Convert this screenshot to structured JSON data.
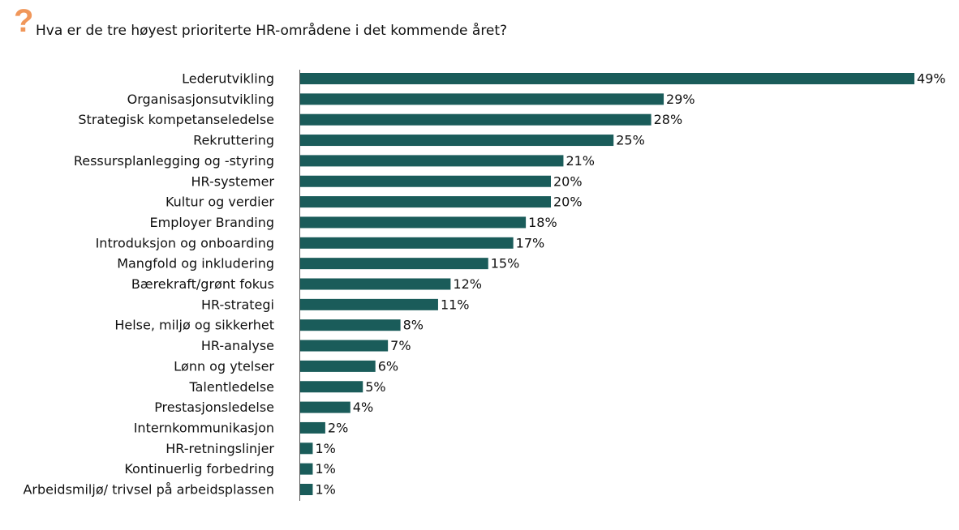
{
  "header": {
    "icon": "question-mark-icon",
    "icon_text": "?",
    "icon_color": "#f0975a",
    "title": "Hva er de tre høyest prioriterte HR-områdene i det kommende året?"
  },
  "chart_data": {
    "type": "bar",
    "orientation": "horizontal",
    "title": "Hva er de tre høyest prioriterte HR-områdene i det kommende året?",
    "categories": [
      "Lederutvikling",
      "Organisasjonsutvikling",
      "Strategisk kompetanseledelse",
      "Rekruttering",
      "Ressursplanlegging og -styring",
      "HR-systemer",
      "Kultur og verdier",
      "Employer Branding",
      "Introduksjon og onboarding",
      "Mangfold og inkludering",
      "Bærekraft/grønt fokus",
      "HR-strategi",
      "Helse, miljø og sikkerhet",
      "HR-analyse",
      "Lønn og ytelser",
      "Talentledelse",
      "Prestasjonsledelse",
      "Internkommunikasjon",
      "HR-retningslinjer",
      "Kontinuerlig forbedring",
      "Arbeidsmiljø/ trivsel på arbeidsplassen"
    ],
    "values": [
      49,
      29,
      28,
      25,
      21,
      20,
      20,
      18,
      17,
      15,
      12,
      11,
      8,
      7,
      6,
      5,
      4,
      2,
      1,
      1,
      1
    ],
    "data_labels": [
      "49%",
      "29%",
      "28%",
      "25%",
      "21%",
      "20%",
      "20%",
      "18%",
      "17%",
      "15%",
      "12%",
      "11%",
      "8%",
      "7%",
      "6%",
      "5%",
      "4%",
      "2%",
      "1%",
      "1%",
      "1%"
    ],
    "unit": "%",
    "xlim": [
      0,
      50
    ],
    "grid": false,
    "bar_color": "#1a5c5a"
  }
}
